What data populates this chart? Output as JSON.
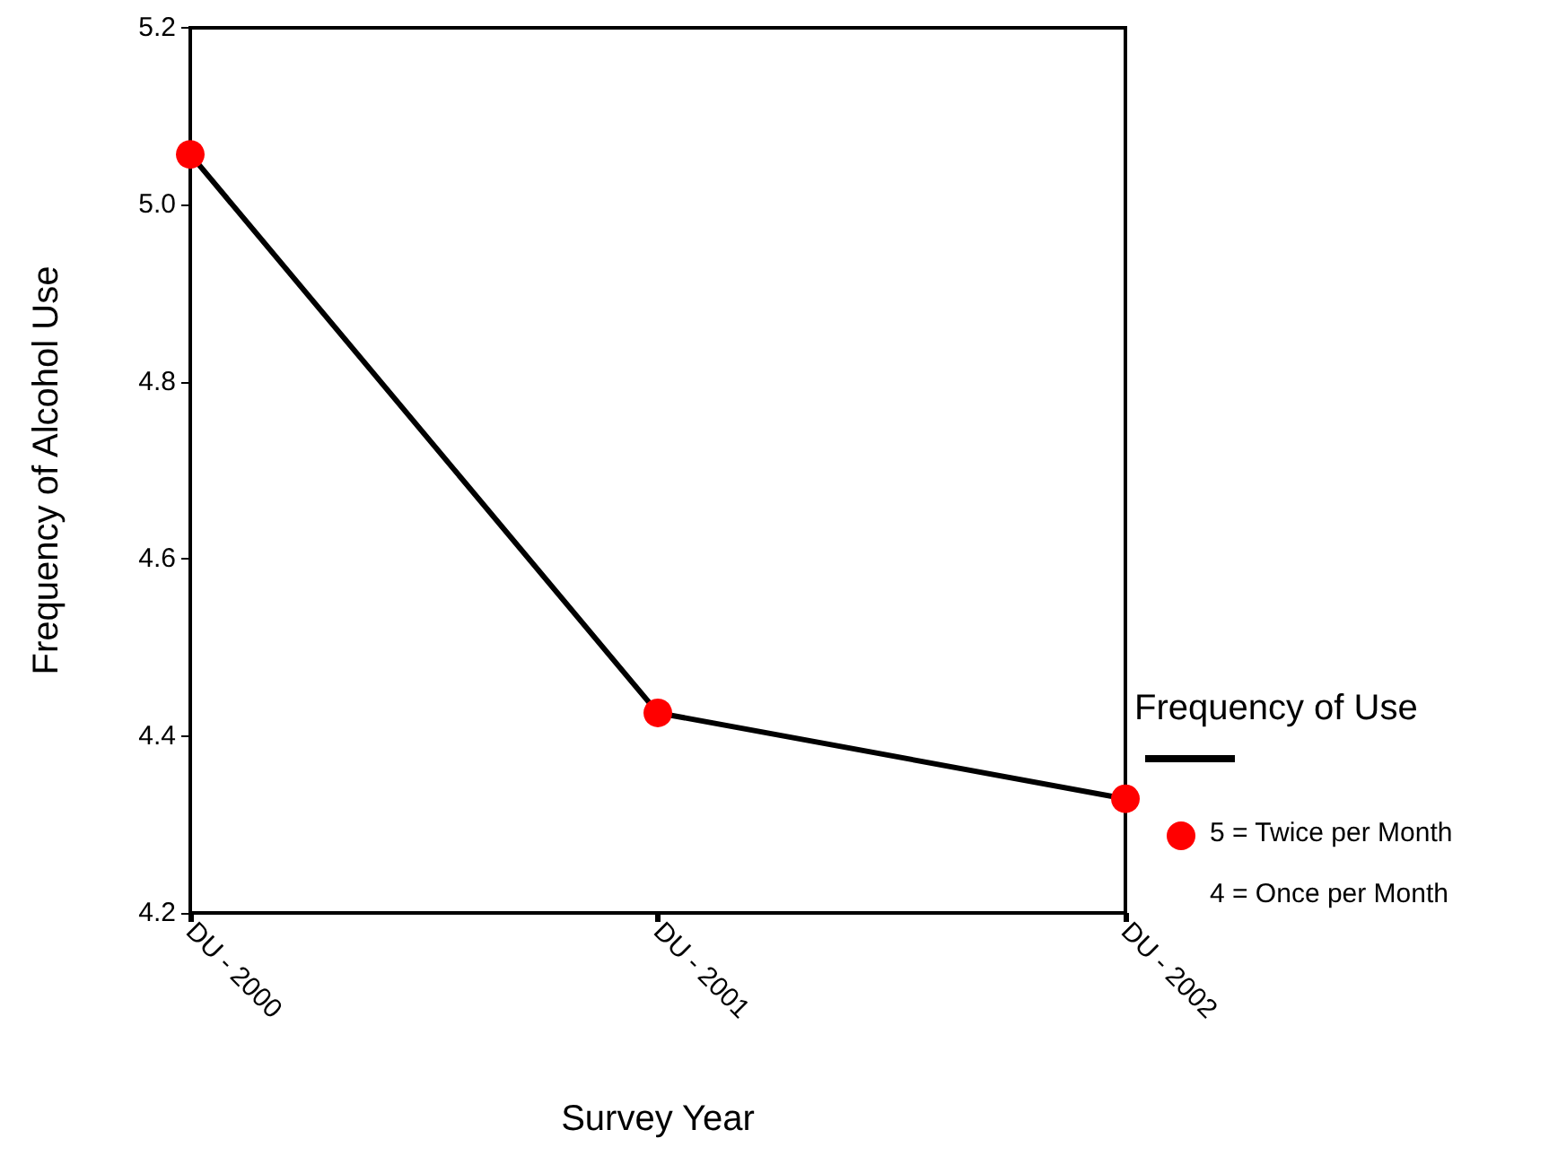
{
  "chart_data": {
    "type": "line",
    "xlabel": "Survey Year",
    "ylabel": "Frequency of Alcohol Use",
    "legend_title": "Frequency of Use",
    "categories": [
      "DU - 2000",
      "DU - 2001",
      "DU - 2002"
    ],
    "series": [
      {
        "color": "#000000",
        "colors": [
          "#ff0000",
          "#ff0000",
          "#ff0000"
        ],
        "values": [
          5.057,
          4.426,
          4.329
        ]
      }
    ],
    "ylim": [
      4.2,
      5.2
    ],
    "yticks": [
      4.2,
      4.4,
      4.6,
      4.8,
      {
        "value": 5,
        "label": "5.0"
      },
      5.2
    ],
    "annotations": [
      "5 = Twice per Month",
      "4 = Once per Month"
    ],
    "grid": false,
    "marker": "circle",
    "line_style": "solid"
  }
}
